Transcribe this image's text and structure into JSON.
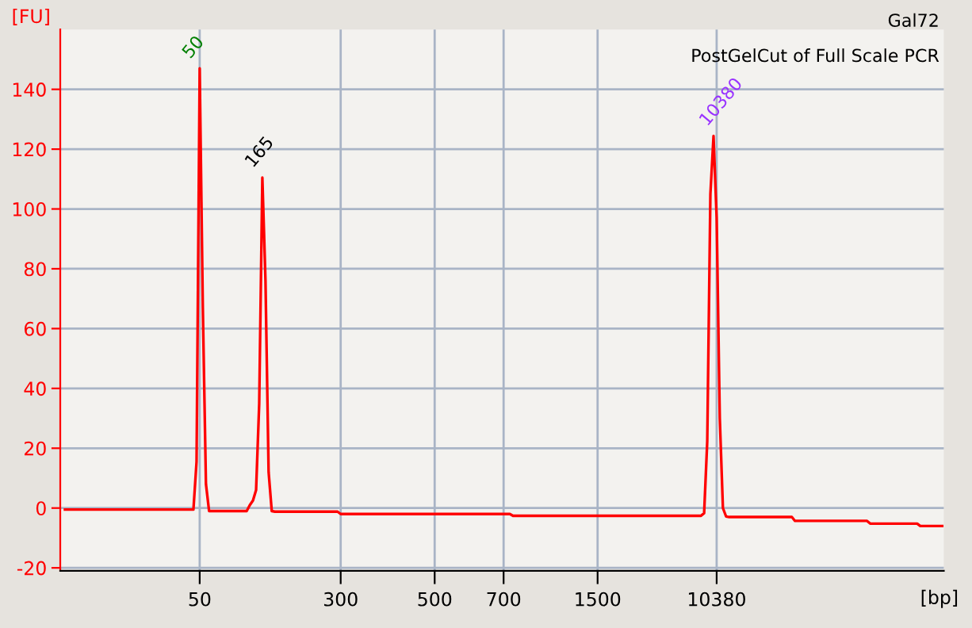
{
  "chart_data": {
    "type": "line",
    "xlabel": "[bp]",
    "ylabel": "[FU]",
    "categories": [
      null,
      null,
      null,
      null,
      null,
      null,
      null,
      null,
      null,
      null,
      null,
      null,
      null,
      null,
      null,
      null,
      null,
      null,
      null,
      null,
      null,
      null,
      null,
      null,
      null,
      null,
      null,
      null,
      null,
      null,
      null,
      null,
      null,
      null,
      null,
      null,
      null,
      null,
      null,
      null,
      null,
      null,
      null,
      "50",
      null,
      null,
      null,
      null,
      null,
      null,
      null,
      null,
      null,
      null,
      null,
      null,
      null,
      null,
      null,
      null,
      null,
      null,
      null,
      null,
      null,
      null,
      null,
      null,
      null,
      null,
      null,
      null,
      null,
      null,
      null,
      null,
      null,
      null,
      null,
      null,
      null,
      null,
      null,
      null,
      null,
      null,
      null,
      null,
      "300",
      null,
      null,
      null,
      null,
      null,
      null,
      null,
      null,
      null,
      null,
      null,
      null,
      null,
      null,
      null,
      null,
      null,
      null,
      null,
      null,
      null,
      null,
      null,
      null,
      null,
      null,
      null,
      null,
      null,
      "500",
      null,
      null,
      null,
      null,
      null,
      null,
      null,
      null,
      null,
      null,
      null,
      null,
      null,
      null,
      null,
      null,
      null,
      null,
      null,
      null,
      null,
      "700",
      null,
      null,
      null,
      null,
      null,
      null,
      null,
      null,
      null,
      null,
      null,
      null,
      null,
      null,
      null,
      null,
      null,
      null,
      null,
      null,
      null,
      null,
      null,
      null,
      null,
      null,
      null,
      null,
      null,
      "1500",
      null,
      null,
      null,
      null,
      null,
      null,
      null,
      null,
      null,
      null,
      null,
      null,
      null,
      null,
      null,
      null,
      null,
      null,
      null,
      null,
      null,
      null,
      null,
      null,
      null,
      null,
      null,
      null,
      null,
      null,
      null,
      null,
      null,
      null,
      null,
      null,
      null,
      "10380",
      null,
      null,
      null,
      null,
      null,
      null,
      null,
      null,
      null,
      null,
      null,
      null,
      null,
      null,
      null,
      null,
      null,
      null,
      null,
      null,
      null,
      null,
      null,
      null,
      null,
      null,
      null,
      null,
      null,
      null,
      null,
      null,
      null,
      null,
      null,
      null,
      null,
      null,
      null,
      null,
      null,
      null,
      null,
      null,
      null,
      null,
      null,
      null,
      null,
      null,
      null,
      null,
      null,
      null,
      null,
      null,
      null,
      null,
      null,
      null,
      null,
      null,
      null,
      null,
      null,
      null,
      null,
      null,
      null,
      null,
      null,
      null
    ],
    "series": [
      {
        "color": "#ff0000",
        "values": [
          -0.5,
          -0.5,
          -0.5,
          -0.5,
          -0.5,
          -0.5,
          -0.5,
          -0.5,
          -0.5,
          -0.5,
          -0.5,
          -0.5,
          -0.5,
          -0.5,
          -0.5,
          -0.5,
          -0.5,
          -0.5,
          -0.5,
          -0.5,
          -0.5,
          -0.5,
          -0.5,
          -0.5,
          -0.5,
          -0.5,
          -0.5,
          -0.5,
          -0.5,
          -0.5,
          -0.5,
          -0.5,
          -0.5,
          -0.5,
          -0.5,
          -0.5,
          -0.5,
          -0.5,
          -0.5,
          -0.5,
          -0.5,
          -0.5,
          15.5,
          147,
          67,
          8,
          -1,
          -1,
          -1,
          -1,
          -1,
          -1,
          -1,
          -1,
          -1,
          -1,
          -1,
          -1,
          -1,
          1,
          2.5,
          6,
          35,
          110.5,
          76,
          12,
          -1,
          -1.2,
          -1.2,
          -1.2,
          -1.2,
          -1.2,
          -1.2,
          -1.2,
          -1.2,
          -1.2,
          -1.2,
          -1.2,
          -1.2,
          -1.2,
          -1.2,
          -1.2,
          -1.2,
          -1.2,
          -1.2,
          -1.2,
          -1.2,
          -1.2,
          -2,
          -2,
          -2,
          -2,
          -2,
          -2,
          -2,
          -2,
          -2,
          -2,
          -2,
          -2,
          -2,
          -2,
          -2,
          -2,
          -2,
          -2,
          -2,
          -2,
          -2,
          -2,
          -2,
          -2,
          -2,
          -2,
          -2,
          -2,
          -2,
          -2,
          -2,
          -2,
          -2,
          -2,
          -2,
          -2,
          -2,
          -2,
          -2,
          -2,
          -2,
          -2,
          -2,
          -2,
          -2,
          -2,
          -2,
          -2,
          -2,
          -2,
          -2,
          -2,
          -2,
          -2,
          -2,
          -2.6,
          -2.6,
          -2.6,
          -2.6,
          -2.6,
          -2.6,
          -2.6,
          -2.6,
          -2.6,
          -2.6,
          -2.6,
          -2.6,
          -2.6,
          -2.6,
          -2.6,
          -2.6,
          -2.6,
          -2.6,
          -2.6,
          -2.6,
          -2.6,
          -2.6,
          -2.6,
          -2.6,
          -2.6,
          -2.6,
          -2.6,
          -2.6,
          -2.6,
          -2.6,
          -2.6,
          -2.6,
          -2.6,
          -2.6,
          -2.6,
          -2.6,
          -2.6,
          -2.6,
          -2.6,
          -2.6,
          -2.6,
          -2.6,
          -2.6,
          -2.6,
          -2.6,
          -2.6,
          -2.6,
          -2.6,
          -2.6,
          -2.6,
          -2.6,
          -2.6,
          -2.6,
          -2.6,
          -2.6,
          -2.6,
          -2.6,
          -2.6,
          -2.6,
          -2.6,
          -2.6,
          -1.7,
          22.4,
          105,
          124.4,
          97,
          30,
          0,
          -2.8,
          -3,
          -3,
          -3,
          -3,
          -3,
          -3,
          -3,
          -3,
          -3,
          -3,
          -3,
          -3,
          -3,
          -3,
          -3,
          -3,
          -3,
          -3,
          -3,
          -3,
          -3,
          -4.3,
          -4.3,
          -4.3,
          -4.3,
          -4.3,
          -4.3,
          -4.3,
          -4.3,
          -4.3,
          -4.3,
          -4.3,
          -4.3,
          -4.3,
          -4.3,
          -4.3,
          -4.3,
          -4.3,
          -4.3,
          -4.3,
          -4.3,
          -4.3,
          -4.3,
          -4.3,
          -4.3,
          -5.2,
          -5.2,
          -5.2,
          -5.2,
          -5.2,
          -5.2,
          -5.2,
          -5.2,
          -5.2,
          -5.2,
          -5.2,
          -5.2,
          -5.2,
          -5.2,
          -5.2,
          -5.2,
          -6,
          -6,
          -6,
          -6,
          -6,
          -6,
          -6,
          -6
        ]
      }
    ],
    "ylim": [
      -21,
      160
    ],
    "yticks": [
      -20,
      0,
      20,
      40,
      60,
      80,
      100,
      120,
      140
    ],
    "grid": true,
    "marker": "none",
    "line_style": "solid",
    "annotations": [
      "Gal72",
      "PostGelCut of Full Scale PCR",
      {
        "text": "50",
        "x": "50",
        "y": 147
      },
      {
        "text": "165",
        "y": 110.5
      },
      {
        "text": "10380",
        "x": "10380",
        "y": 124.4
      }
    ]
  }
}
